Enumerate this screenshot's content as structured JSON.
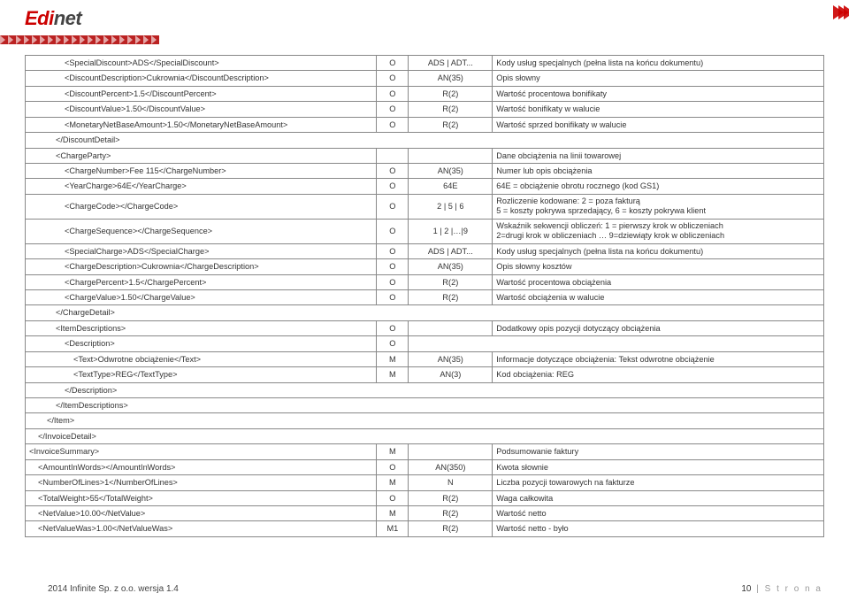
{
  "logo": {
    "red": "Edi",
    "dark": "net"
  },
  "rows": [
    {
      "ind": "ind4",
      "c1": "<SpecialDiscount>ADS</SpecialDiscount>",
      "c2": "O",
      "c3": "ADS | ADT...",
      "c4": "Kody usług specjalnych (pełna lista na końcu dokumentu)",
      "merge": false
    },
    {
      "ind": "ind4",
      "c1": "<DiscountDescription>Cukrownia</DiscountDescription>",
      "c2": "O",
      "c3": "AN(35)",
      "c4": "Opis słowny",
      "merge": false
    },
    {
      "ind": "ind4",
      "c1": "<DiscountPercent>1.5</DiscountPercent>",
      "c2": "O",
      "c3": "R(2)",
      "c4": "Wartość procentowa bonifikaty",
      "merge": false
    },
    {
      "ind": "ind4",
      "c1": "<DiscountValue>1.50</DiscountValue>",
      "c2": "O",
      "c3": "R(2)",
      "c4": "Wartość bonifikaty w walucie",
      "merge": false
    },
    {
      "ind": "ind4",
      "c1": "<MonetaryNetBaseAmount>1.50</MonetaryNetBaseAmount>",
      "c2": "O",
      "c3": "R(2)",
      "c4": "Wartość sprzed bonifikaty w walucie",
      "merge": false
    },
    {
      "ind": "ind3",
      "c1": "</DiscountDetail>",
      "merge": true
    },
    {
      "ind": "ind3",
      "c1": "<ChargeParty>",
      "c2": "",
      "c3": "",
      "c4": "Dane obciążenia na linii towarowej",
      "merge": false
    },
    {
      "ind": "ind4",
      "c1": "<ChargeNumber>Fee 115</ChargeNumber>",
      "c2": "O",
      "c3": "AN(35)",
      "c4": "Numer lub opis obciążenia",
      "merge": false
    },
    {
      "ind": "ind4",
      "c1": "<YearCharge>64E</YearCharge>",
      "c2": "O",
      "c3": "64E",
      "c4": "64E = obciążenie obrotu rocznego (kod GS1)",
      "merge": false
    },
    {
      "ind": "ind4",
      "c1": "<ChargeCode></ChargeCode>",
      "c2": "O",
      "c3": "2 | 5 | 6",
      "c4": "Rozliczenie kodowane: 2 = poza fakturą\n5 = koszty pokrywa sprzedający, 6 = koszty pokrywa klient",
      "merge": false,
      "multi": true
    },
    {
      "ind": "ind4",
      "c1": "<ChargeSequence></ChargeSequence>",
      "c2": "O",
      "c3": "1 | 2 |…|9",
      "c4": "Wskaźnik sekwencji obliczeń: 1 = pierwszy krok w obliczeniach\n2=drugi krok w obliczeniach … 9=dziewiąty krok w obliczeniach",
      "merge": false,
      "multi": true
    },
    {
      "ind": "ind4",
      "c1": "<SpecialCharge>ADS</SpecialCharge>",
      "c2": "O",
      "c3": "ADS | ADT...",
      "c4": "Kody usług specjalnych (pełna lista na końcu dokumentu)",
      "merge": false
    },
    {
      "ind": "ind4",
      "c1": "<ChargeDescription>Cukrownia</ChargeDescription>",
      "c2": "O",
      "c3": "AN(35)",
      "c4": "Opis słowny kosztów",
      "merge": false
    },
    {
      "ind": "ind4",
      "c1": "<ChargePercent>1.5</ChargePercent>",
      "c2": "O",
      "c3": "R(2)",
      "c4": "Wartość procentowa obciążenia",
      "merge": false
    },
    {
      "ind": "ind4",
      "c1": "<ChargeValue>1.50</ChargeValue>",
      "c2": "O",
      "c3": "R(2)",
      "c4": "Wartość obciążenia w walucie",
      "merge": false
    },
    {
      "ind": "ind3",
      "c1": "</ChargeDetail>",
      "merge": true
    },
    {
      "ind": "ind3",
      "c1": "<ItemDescriptions>",
      "c2": "O",
      "c3": "",
      "c4": "Dodatkowy opis pozycji dotyczący obciążenia",
      "merge": false
    },
    {
      "ind": "ind4",
      "c1": "<Description>",
      "c2": "O",
      "c3": "",
      "c4": "",
      "merge": false,
      "span23": true
    },
    {
      "ind": "ind5",
      "c1": "<Text>Odwrotne obciążenie</Text>",
      "c2": "M",
      "c3": "AN(35)",
      "c4": "Informacje dotyczące obciążenia: Tekst odwrotne obciążenie",
      "merge": false
    },
    {
      "ind": "ind5",
      "c1": "<TextType>REG</TextType>",
      "c2": "M",
      "c3": "AN(3)",
      "c4": "Kod obciążenia: REG",
      "merge": false
    },
    {
      "ind": "ind4",
      "c1": "</Description>",
      "merge": true
    },
    {
      "ind": "ind3",
      "c1": "</ItemDescriptions>",
      "merge": true
    },
    {
      "ind": "ind2",
      "c1": "</Item>",
      "merge": true
    },
    {
      "ind": "ind1",
      "c1": "</InvoiceDetail>",
      "merge": true
    },
    {
      "ind": "ind0",
      "c1": "<InvoiceSummary>",
      "c2": "M",
      "c3": "",
      "c4": "Podsumowanie faktury",
      "merge": false
    },
    {
      "ind": "ind1",
      "c1": "<AmountInWords></AmountInWords>",
      "c2": "O",
      "c3": "AN(350)",
      "c4": "Kwota słownie",
      "merge": false
    },
    {
      "ind": "ind1",
      "c1": "<NumberOfLines>1</NumberOfLines>",
      "c2": "M",
      "c3": "N",
      "c4": "Liczba pozycji towarowych na fakturze",
      "merge": false
    },
    {
      "ind": "ind1",
      "c1": "<TotalWeight>55</TotalWeight>",
      "c2": "O",
      "c3": "R(2)",
      "c4": "Waga całkowita",
      "merge": false
    },
    {
      "ind": "ind1",
      "c1": "<NetValue>10.00</NetValue>",
      "c2": "M",
      "c3": "R(2)",
      "c4": "Wartość netto",
      "merge": false
    },
    {
      "ind": "ind1",
      "c1": "<NetValueWas>1.00</NetValueWas>",
      "c2": "M1",
      "c3": "R(2)",
      "c4": "Wartość netto - było",
      "merge": false
    }
  ],
  "footer": {
    "left": "2014 Infinite Sp. z o.o. wersja 1.4",
    "pageNum": "10",
    "pageText": "| S t r o n a"
  }
}
